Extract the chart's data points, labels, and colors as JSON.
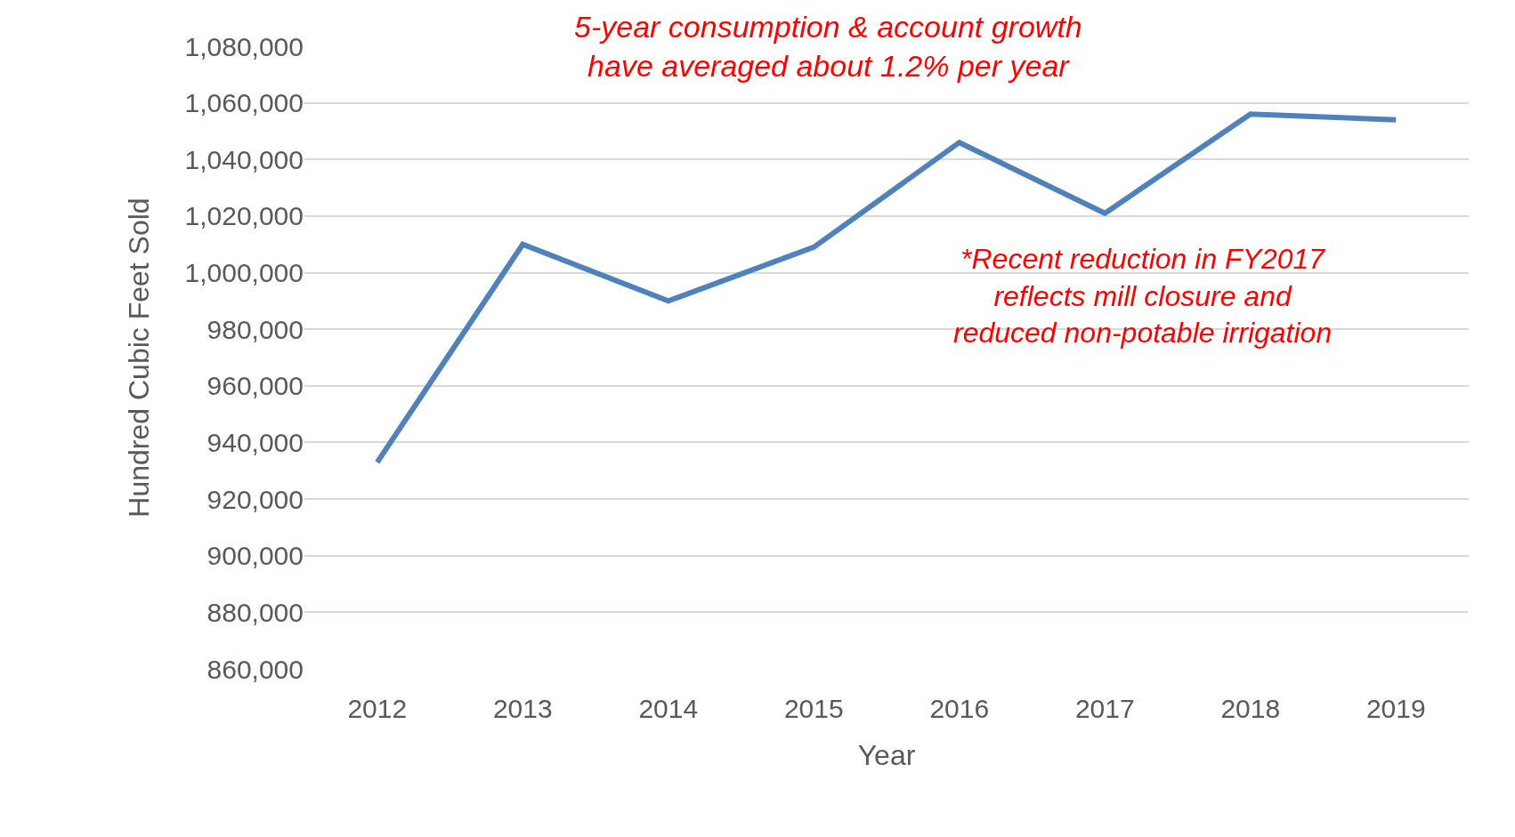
{
  "chart_data": {
    "type": "line",
    "xlabel": "Year",
    "ylabel": "Hundred Cubic Feet Sold",
    "categories": [
      "2012",
      "2013",
      "2014",
      "2015",
      "2016",
      "2017",
      "2018",
      "2019"
    ],
    "series": [
      {
        "color": "#4f81bd",
        "values": [
          933000,
          1010000,
          990000,
          1009000,
          1046000,
          1021000,
          1056000,
          1054000
        ]
      }
    ],
    "ylim": [
      860000,
      1080000
    ],
    "yticks": [
      {
        "value": 860000,
        "label": "860,000"
      },
      {
        "value": 880000,
        "label": "880,000"
      },
      {
        "value": 900000,
        "label": "900,000"
      },
      {
        "value": 920000,
        "label": "920,000"
      },
      {
        "value": 940000,
        "label": "940,000"
      },
      {
        "value": 960000,
        "label": "960,000"
      },
      {
        "value": 980000,
        "label": "980,000"
      },
      {
        "value": 1000000,
        "label": "1,000,000"
      },
      {
        "value": 1020000,
        "label": "1,020,000"
      },
      {
        "value": 1040000,
        "label": "1,040,000"
      },
      {
        "value": 1060000,
        "label": "1,060,000"
      },
      {
        "value": 1080000,
        "label": "1,080,000"
      }
    ],
    "grid": "y",
    "marker": "none",
    "line_style": "solid",
    "annotations": [
      "5-year consumption & account growth\nhave averaged about 1.2% per year",
      "*Recent reduction in FY2017\nreflects mill closure and\nreduced non-potable irrigation"
    ]
  }
}
